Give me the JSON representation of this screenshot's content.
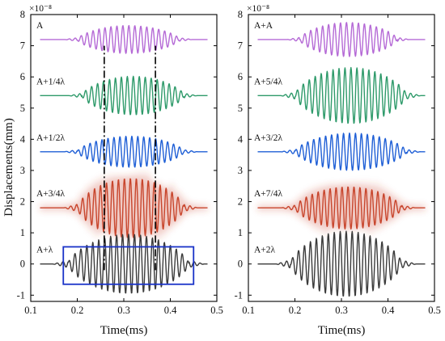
{
  "chart_data": [
    {
      "type": "line",
      "panel": "left",
      "xlabel": "Time(ms)",
      "ylabel": "Displacements(mm)",
      "y_multiplier": "×10⁻⁸",
      "xlim": [
        0.1,
        0.5
      ],
      "ylim": [
        -1.2,
        8
      ],
      "xticks": [
        "0.1",
        "0.2",
        "0.3",
        "0.4",
        "0.5"
      ],
      "yticks": [
        "-1",
        "0",
        "1",
        "2",
        "3",
        "4",
        "5",
        "6",
        "7",
        "8"
      ],
      "grid": false,
      "traces": [
        {
          "label": "A",
          "color": "#b56ad6",
          "offset": 7.2,
          "amplitude": 0.45,
          "start": 0.2,
          "end": 0.42,
          "freq": 78,
          "phase": 0,
          "glow": false
        },
        {
          "label": "A+1/4λ",
          "color": "#2e9a6a",
          "offset": 5.4,
          "amplitude": 0.62,
          "start": 0.21,
          "end": 0.43,
          "freq": 78,
          "phase": 1.57,
          "glow": false
        },
        {
          "label": "A+1/2λ",
          "color": "#1f5fd6",
          "offset": 3.6,
          "amplitude": 0.5,
          "start": 0.2,
          "end": 0.43,
          "freq": 78,
          "phase": 3.14,
          "glow": false
        },
        {
          "label": "A+3/4λ",
          "color": "#c8452c",
          "offset": 1.8,
          "amplitude": 0.95,
          "start": 0.2,
          "end": 0.43,
          "freq": 78,
          "phase": 4.71,
          "glow": true
        },
        {
          "label": "A+λ",
          "color": "#3b3b3b",
          "offset": 0.0,
          "amplitude": 0.95,
          "start": 0.18,
          "end": 0.44,
          "freq": 78,
          "phase": 0.3,
          "glow": false
        }
      ],
      "dash_dot_lines": {
        "x": [
          0.258,
          0.368
        ],
        "y_from": -0.2,
        "y_to": 7.0,
        "color": "#000000"
      },
      "highlight_box": {
        "x": [
          0.17,
          0.45
        ],
        "y": [
          -0.65,
          0.55
        ],
        "color": "#1a33c8"
      }
    },
    {
      "type": "line",
      "panel": "right",
      "xlabel": "Time(ms)",
      "ylabel": "",
      "y_multiplier": "×10⁻⁸",
      "xlim": [
        0.1,
        0.5
      ],
      "ylim": [
        -1.2,
        8
      ],
      "xticks": [
        "0.1",
        "0.2",
        "0.3",
        "0.4",
        "0.5"
      ],
      "yticks": [
        "-1",
        "0",
        "1",
        "2",
        "3",
        "4",
        "5",
        "6",
        "7",
        "8"
      ],
      "grid": false,
      "traces": [
        {
          "label": "A+A",
          "color": "#b56ad6",
          "offset": 7.2,
          "amplitude": 0.55,
          "start": 0.21,
          "end": 0.42,
          "freq": 78,
          "phase": 0,
          "glow": false
        },
        {
          "label": "A+5/4λ",
          "color": "#2e9a6a",
          "offset": 5.4,
          "amplitude": 0.9,
          "start": 0.2,
          "end": 0.44,
          "freq": 78,
          "phase": 1.57,
          "glow": false
        },
        {
          "label": "A+3/2λ",
          "color": "#1f5fd6",
          "offset": 3.6,
          "amplitude": 0.6,
          "start": 0.2,
          "end": 0.44,
          "freq": 78,
          "phase": 3.14,
          "glow": false
        },
        {
          "label": "A+7/4λ",
          "color": "#c8452c",
          "offset": 1.8,
          "amplitude": 0.68,
          "start": 0.2,
          "end": 0.43,
          "freq": 78,
          "phase": 4.71,
          "glow": true
        },
        {
          "label": "A+2λ",
          "color": "#3b3b3b",
          "offset": 0.0,
          "amplitude": 1.05,
          "start": 0.19,
          "end": 0.43,
          "freq": 78,
          "phase": 0.3,
          "glow": false
        }
      ]
    }
  ]
}
